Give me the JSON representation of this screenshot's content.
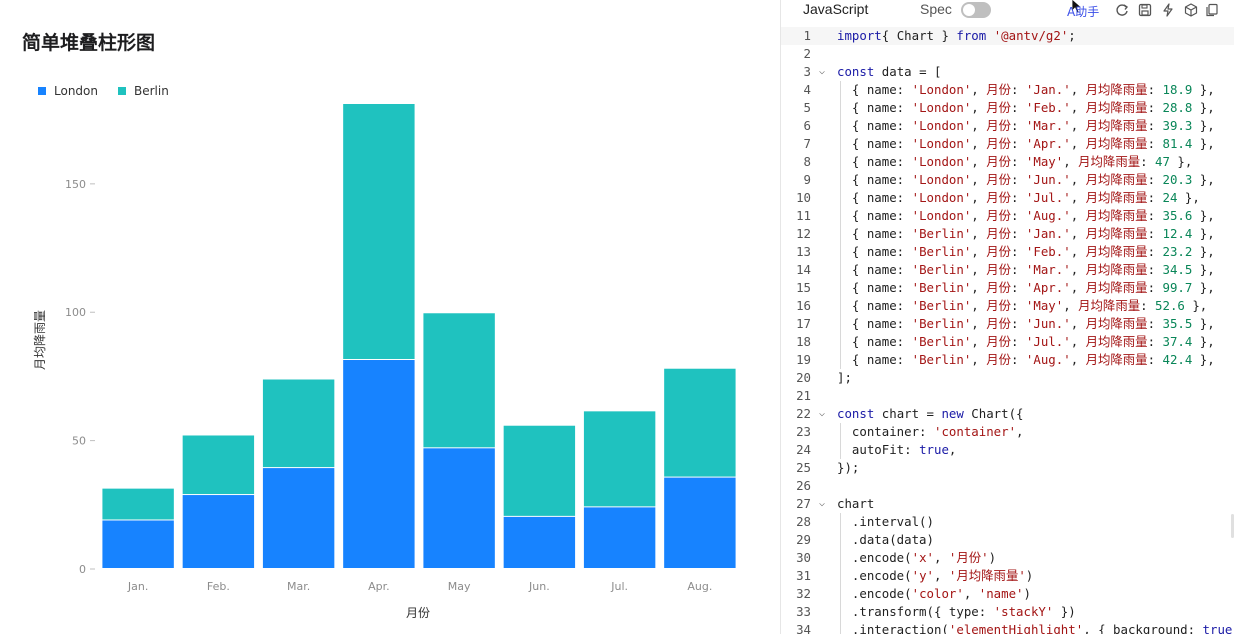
{
  "chart": {
    "title": "简单堆叠柱形图",
    "xlabel": "月份",
    "ylabel": "月均降雨量"
  },
  "chart_data": {
    "type": "bar",
    "stacked": true,
    "title": "简单堆叠柱形图",
    "xlabel": "月份",
    "ylabel": "月均降雨量",
    "categories": [
      "Jan.",
      "Feb.",
      "Mar.",
      "Apr.",
      "May",
      "Jun.",
      "Jul.",
      "Aug."
    ],
    "series": [
      {
        "name": "London",
        "color": "#1783FF",
        "values": [
          18.9,
          28.8,
          39.3,
          81.4,
          47,
          20.3,
          24,
          35.6
        ]
      },
      {
        "name": "Berlin",
        "color": "#1FC2BF",
        "values": [
          12.4,
          23.2,
          34.5,
          99.7,
          52.6,
          35.5,
          37.4,
          42.4
        ]
      }
    ],
    "yticks": [
      0,
      50,
      100,
      150
    ],
    "ytick_labels": [
      "0",
      "50",
      "100",
      "150"
    ],
    "ylim": [
      0,
      181.1
    ],
    "legend": "top-left",
    "grid": false
  },
  "editor": {
    "tabs": {
      "js": "JavaScript",
      "spec": "Spec"
    },
    "ai_label": "AI助手",
    "ai_label_visible": "助手",
    "icons": [
      "refresh-icon",
      "save-icon",
      "lightning-icon",
      "box-icon",
      "copy-icon"
    ],
    "lines": [
      {
        "n": "1",
        "fold": "",
        "tokens": [
          [
            "kw",
            "import"
          ],
          [
            "",
            "{ "
          ],
          [
            "",
            "Chart"
          ],
          [
            "",
            " } "
          ],
          [
            "kw",
            "from"
          ],
          [
            "",
            ""
          ],
          [
            "str",
            " '@antv/g2'"
          ],
          [
            "",
            ";"
          ]
        ]
      },
      {
        "n": "2",
        "fold": "",
        "tokens": []
      },
      {
        "n": "3",
        "fold": "v",
        "tokens": [
          [
            "kw",
            "const"
          ],
          [
            "",
            "",
            " "
          ],
          [
            "",
            "data = ["
          ]
        ]
      },
      {
        "n": "4",
        "fold": "",
        "guide": true,
        "tokens": [
          [
            "",
            "  { name: "
          ],
          [
            "str",
            "'London'"
          ],
          [
            "",
            ", "
          ],
          [
            "cn",
            "月份"
          ],
          [
            "",
            ": "
          ],
          [
            "str",
            "'Jan.'"
          ],
          [
            "",
            ", "
          ],
          [
            "cn",
            "月均降雨量"
          ],
          [
            "",
            ": "
          ],
          [
            "num",
            "18.9"
          ],
          [
            "",
            " },"
          ]
        ]
      },
      {
        "n": "5",
        "fold": "",
        "guide": true,
        "tokens": [
          [
            "",
            "  { name: "
          ],
          [
            "str",
            "'London'"
          ],
          [
            "",
            ", "
          ],
          [
            "cn",
            "月份"
          ],
          [
            "",
            ": "
          ],
          [
            "str",
            "'Feb.'"
          ],
          [
            "",
            ", "
          ],
          [
            "cn",
            "月均降雨量"
          ],
          [
            "",
            ": "
          ],
          [
            "num",
            "28.8"
          ],
          [
            "",
            " },"
          ]
        ]
      },
      {
        "n": "6",
        "fold": "",
        "guide": true,
        "tokens": [
          [
            "",
            "  { name: "
          ],
          [
            "str",
            "'London'"
          ],
          [
            "",
            ", "
          ],
          [
            "cn",
            "月份"
          ],
          [
            "",
            ": "
          ],
          [
            "str",
            "'Mar.'"
          ],
          [
            "",
            ", "
          ],
          [
            "cn",
            "月均降雨量"
          ],
          [
            "",
            ": "
          ],
          [
            "num",
            "39.3"
          ],
          [
            "",
            " },"
          ]
        ]
      },
      {
        "n": "7",
        "fold": "",
        "guide": true,
        "tokens": [
          [
            "",
            "  { name: "
          ],
          [
            "str",
            "'London'"
          ],
          [
            "",
            ", "
          ],
          [
            "cn",
            "月份"
          ],
          [
            "",
            ": "
          ],
          [
            "str",
            "'Apr.'"
          ],
          [
            "",
            ", "
          ],
          [
            "cn",
            "月均降雨量"
          ],
          [
            "",
            ": "
          ],
          [
            "num",
            "81.4"
          ],
          [
            "",
            " },"
          ]
        ]
      },
      {
        "n": "8",
        "fold": "",
        "guide": true,
        "tokens": [
          [
            "",
            "  { name: "
          ],
          [
            "str",
            "'London'"
          ],
          [
            "",
            ", "
          ],
          [
            "cn",
            "月份"
          ],
          [
            "",
            ": "
          ],
          [
            "str",
            "'May'"
          ],
          [
            "",
            ", "
          ],
          [
            "cn",
            "月均降雨量"
          ],
          [
            "",
            ": "
          ],
          [
            "num",
            "47"
          ],
          [
            "",
            " },"
          ]
        ]
      },
      {
        "n": "9",
        "fold": "",
        "guide": true,
        "tokens": [
          [
            "",
            "  { name: "
          ],
          [
            "str",
            "'London'"
          ],
          [
            "",
            ", "
          ],
          [
            "cn",
            "月份"
          ],
          [
            "",
            ": "
          ],
          [
            "str",
            "'Jun.'"
          ],
          [
            "",
            ", "
          ],
          [
            "cn",
            "月均降雨量"
          ],
          [
            "",
            ": "
          ],
          [
            "num",
            "20.3"
          ],
          [
            "",
            " },"
          ]
        ]
      },
      {
        "n": "10",
        "fold": "",
        "guide": true,
        "tokens": [
          [
            "",
            "  { name: "
          ],
          [
            "str",
            "'London'"
          ],
          [
            "",
            ", "
          ],
          [
            "cn",
            "月份"
          ],
          [
            "",
            ": "
          ],
          [
            "str",
            "'Jul.'"
          ],
          [
            "",
            ", "
          ],
          [
            "cn",
            "月均降雨量"
          ],
          [
            "",
            ": "
          ],
          [
            "num",
            "24"
          ],
          [
            "",
            " },"
          ]
        ]
      },
      {
        "n": "11",
        "fold": "",
        "guide": true,
        "tokens": [
          [
            "",
            "  { name: "
          ],
          [
            "str",
            "'London'"
          ],
          [
            "",
            ", "
          ],
          [
            "cn",
            "月份"
          ],
          [
            "",
            ": "
          ],
          [
            "str",
            "'Aug.'"
          ],
          [
            "",
            ", "
          ],
          [
            "cn",
            "月均降雨量"
          ],
          [
            "",
            ": "
          ],
          [
            "num",
            "35.6"
          ],
          [
            "",
            " },"
          ]
        ]
      },
      {
        "n": "12",
        "fold": "",
        "guide": true,
        "tokens": [
          [
            "",
            "  { name: "
          ],
          [
            "str",
            "'Berlin'"
          ],
          [
            "",
            ", "
          ],
          [
            "cn",
            "月份"
          ],
          [
            "",
            ": "
          ],
          [
            "str",
            "'Jan.'"
          ],
          [
            "",
            ", "
          ],
          [
            "cn",
            "月均降雨量"
          ],
          [
            "",
            ": "
          ],
          [
            "num",
            "12.4"
          ],
          [
            "",
            " },"
          ]
        ]
      },
      {
        "n": "13",
        "fold": "",
        "guide": true,
        "tokens": [
          [
            "",
            "  { name: "
          ],
          [
            "str",
            "'Berlin'"
          ],
          [
            "",
            ", "
          ],
          [
            "cn",
            "月份"
          ],
          [
            "",
            ": "
          ],
          [
            "str",
            "'Feb.'"
          ],
          [
            "",
            ", "
          ],
          [
            "cn",
            "月均降雨量"
          ],
          [
            "",
            ": "
          ],
          [
            "num",
            "23.2"
          ],
          [
            "",
            " },"
          ]
        ]
      },
      {
        "n": "14",
        "fold": "",
        "guide": true,
        "tokens": [
          [
            "",
            "  { name: "
          ],
          [
            "str",
            "'Berlin'"
          ],
          [
            "",
            ", "
          ],
          [
            "cn",
            "月份"
          ],
          [
            "",
            ": "
          ],
          [
            "str",
            "'Mar.'"
          ],
          [
            "",
            ", "
          ],
          [
            "cn",
            "月均降雨量"
          ],
          [
            "",
            ": "
          ],
          [
            "num",
            "34.5"
          ],
          [
            "",
            " },"
          ]
        ]
      },
      {
        "n": "15",
        "fold": "",
        "guide": true,
        "tokens": [
          [
            "",
            "  { name: "
          ],
          [
            "str",
            "'Berlin'"
          ],
          [
            "",
            ", "
          ],
          [
            "cn",
            "月份"
          ],
          [
            "",
            ": "
          ],
          [
            "str",
            "'Apr.'"
          ],
          [
            "",
            ", "
          ],
          [
            "cn",
            "月均降雨量"
          ],
          [
            "",
            ": "
          ],
          [
            "num",
            "99.7"
          ],
          [
            "",
            " },"
          ]
        ]
      },
      {
        "n": "16",
        "fold": "",
        "guide": true,
        "tokens": [
          [
            "",
            "  { name: "
          ],
          [
            "str",
            "'Berlin'"
          ],
          [
            "",
            ", "
          ],
          [
            "cn",
            "月份"
          ],
          [
            "",
            ": "
          ],
          [
            "str",
            "'May'"
          ],
          [
            "",
            ", "
          ],
          [
            "cn",
            "月均降雨量"
          ],
          [
            "",
            ": "
          ],
          [
            "num",
            "52.6"
          ],
          [
            "",
            " },"
          ]
        ]
      },
      {
        "n": "17",
        "fold": "",
        "guide": true,
        "tokens": [
          [
            "",
            "  { name: "
          ],
          [
            "str",
            "'Berlin'"
          ],
          [
            "",
            ", "
          ],
          [
            "cn",
            "月份"
          ],
          [
            "",
            ": "
          ],
          [
            "str",
            "'Jun.'"
          ],
          [
            "",
            ", "
          ],
          [
            "cn",
            "月均降雨量"
          ],
          [
            "",
            ": "
          ],
          [
            "num",
            "35.5"
          ],
          [
            "",
            " },"
          ]
        ]
      },
      {
        "n": "18",
        "fold": "",
        "guide": true,
        "tokens": [
          [
            "",
            "  { name: "
          ],
          [
            "str",
            "'Berlin'"
          ],
          [
            "",
            ", "
          ],
          [
            "cn",
            "月份"
          ],
          [
            "",
            ": "
          ],
          [
            "str",
            "'Jul.'"
          ],
          [
            "",
            ", "
          ],
          [
            "cn",
            "月均降雨量"
          ],
          [
            "",
            ": "
          ],
          [
            "num",
            "37.4"
          ],
          [
            "",
            " },"
          ]
        ]
      },
      {
        "n": "19",
        "fold": "",
        "guide": true,
        "tokens": [
          [
            "",
            "  { name: "
          ],
          [
            "str",
            "'Berlin'"
          ],
          [
            "",
            ", "
          ],
          [
            "cn",
            "月份"
          ],
          [
            "",
            ": "
          ],
          [
            "str",
            "'Aug.'"
          ],
          [
            "",
            ", "
          ],
          [
            "cn",
            "月均降雨量"
          ],
          [
            "",
            ": "
          ],
          [
            "num",
            "42.4"
          ],
          [
            "",
            " },"
          ]
        ]
      },
      {
        "n": "20",
        "fold": "",
        "tokens": [
          [
            "",
            "];"
          ]
        ]
      },
      {
        "n": "21",
        "fold": "",
        "tokens": []
      },
      {
        "n": "22",
        "fold": "v",
        "tokens": [
          [
            "kw",
            "const"
          ],
          [
            "",
            " chart = "
          ],
          [
            "kw",
            "new"
          ],
          [
            "",
            " Chart({"
          ]
        ]
      },
      {
        "n": "23",
        "fold": "",
        "guide": true,
        "tokens": [
          [
            "",
            "  container: "
          ],
          [
            "str",
            "'container'"
          ],
          [
            "",
            ","
          ]
        ]
      },
      {
        "n": "24",
        "fold": "",
        "guide": true,
        "tokens": [
          [
            "",
            "  autoFit: "
          ],
          [
            "kw",
            "true"
          ],
          [
            "",
            ","
          ]
        ]
      },
      {
        "n": "25",
        "fold": "",
        "tokens": [
          [
            "",
            "});"
          ]
        ]
      },
      {
        "n": "26",
        "fold": "",
        "tokens": []
      },
      {
        "n": "27",
        "fold": "v",
        "tokens": [
          [
            "",
            "chart"
          ]
        ]
      },
      {
        "n": "28",
        "fold": "",
        "guide": true,
        "tokens": [
          [
            "",
            "  .interval()"
          ]
        ]
      },
      {
        "n": "29",
        "fold": "",
        "guide": true,
        "tokens": [
          [
            "",
            "  .data(data)"
          ]
        ]
      },
      {
        "n": "30",
        "fold": "",
        "guide": true,
        "tokens": [
          [
            "",
            "  .encode("
          ],
          [
            "str",
            "'x'"
          ],
          [
            "",
            ", "
          ],
          [
            "str",
            "'月份'"
          ],
          [
            "",
            ")"
          ]
        ]
      },
      {
        "n": "31",
        "fold": "",
        "guide": true,
        "tokens": [
          [
            "",
            "  .encode("
          ],
          [
            "str",
            "'y'"
          ],
          [
            "",
            ", "
          ],
          [
            "str",
            "'月均降雨量'"
          ],
          [
            "",
            ")"
          ]
        ]
      },
      {
        "n": "32",
        "fold": "",
        "guide": true,
        "tokens": [
          [
            "",
            "  .encode("
          ],
          [
            "str",
            "'color'"
          ],
          [
            "",
            ", "
          ],
          [
            "str",
            "'name'"
          ],
          [
            "",
            ")"
          ]
        ]
      },
      {
        "n": "33",
        "fold": "",
        "guide": true,
        "tokens": [
          [
            "",
            "  .transform({ type: "
          ],
          [
            "str",
            "'stackY'"
          ],
          [
            "",
            " })"
          ]
        ]
      },
      {
        "n": "34",
        "fold": "",
        "guide": true,
        "tokens": [
          [
            "",
            "  .interaction("
          ],
          [
            "str",
            "'elementHighlight'"
          ],
          [
            "",
            ", { background: "
          ],
          [
            "kw",
            "true"
          ],
          [
            "",
            " }"
          ]
        ]
      }
    ]
  }
}
